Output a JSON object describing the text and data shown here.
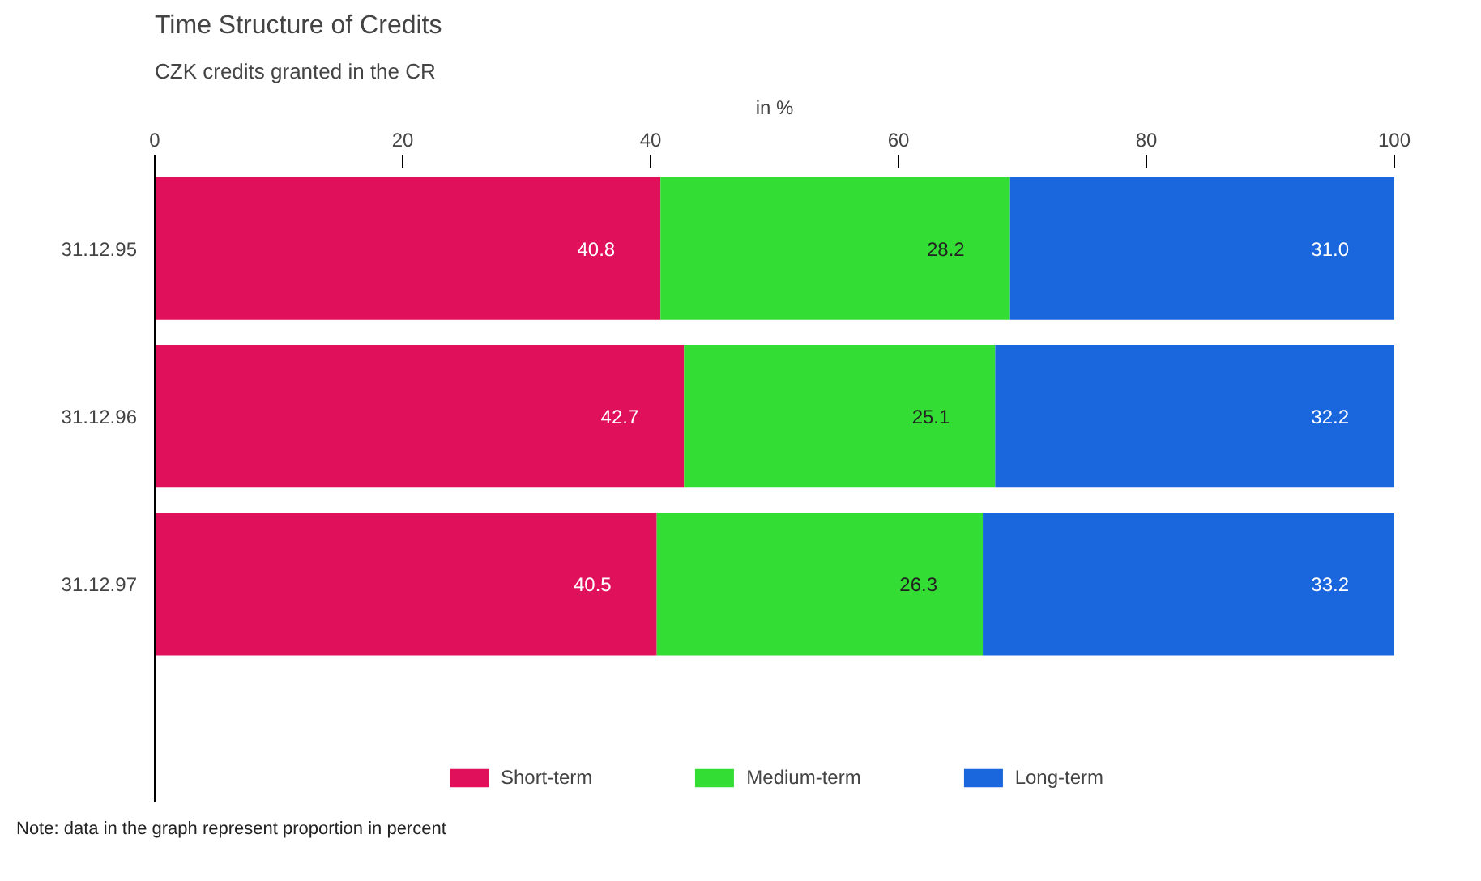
{
  "chart_data": {
    "type": "bar",
    "orientation": "horizontal",
    "stacked": true,
    "title": "Time Structure of Credits",
    "subtitle": "CZK credits granted in the CR",
    "xlabel": "in %",
    "categories": [
      "31.12.95",
      "31.12.96",
      "31.12.97"
    ],
    "series": [
      {
        "name": "Short-term",
        "color": "#e0105a",
        "values": [
          40.8,
          42.7,
          40.5
        ],
        "value_labels": [
          "40.8",
          "42.7",
          "40.5"
        ]
      },
      {
        "name": "Medium-term",
        "color": "#33dd33",
        "values": [
          28.2,
          25.1,
          26.3
        ],
        "value_labels": [
          "28.2",
          "25.1",
          "26.3"
        ]
      },
      {
        "name": "Long-term",
        "color": "#1a66dd",
        "values": [
          31.0,
          32.2,
          33.2
        ],
        "value_labels": [
          "31.0",
          "32.2",
          "33.2"
        ]
      }
    ],
    "grid": false,
    "xlim": [
      0,
      100
    ],
    "xticks": [
      0,
      20,
      40,
      60,
      80,
      100
    ],
    "legend": "bottom",
    "annotations": [
      "Note: data in the graph represent proportion in percent"
    ]
  }
}
